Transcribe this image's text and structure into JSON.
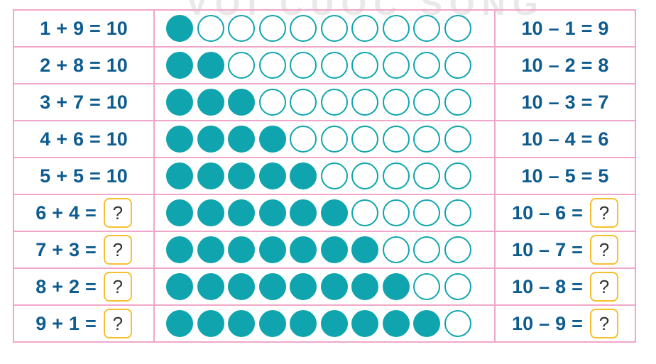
{
  "watermark": "VOI CUOC SONG",
  "colors": {
    "border": "#f0a6c8",
    "text": "#0e5c8f",
    "dot": "#10a5ae",
    "answer_box": "#f7bf2e"
  },
  "total_dots": 10,
  "rows": [
    {
      "left": {
        "a": "1",
        "op": "+",
        "b": "9",
        "eq": "=",
        "res": "10"
      },
      "filled": 1,
      "right": {
        "a": "10",
        "op": "–",
        "b": "1",
        "eq": "=",
        "res": "9"
      }
    },
    {
      "left": {
        "a": "2",
        "op": "+",
        "b": "8",
        "eq": "=",
        "res": "10"
      },
      "filled": 2,
      "right": {
        "a": "10",
        "op": "–",
        "b": "2",
        "eq": "=",
        "res": "8"
      }
    },
    {
      "left": {
        "a": "3",
        "op": "+",
        "b": "7",
        "eq": "=",
        "res": "10"
      },
      "filled": 3,
      "right": {
        "a": "10",
        "op": "–",
        "b": "3",
        "eq": "=",
        "res": "7"
      }
    },
    {
      "left": {
        "a": "4",
        "op": "+",
        "b": "6",
        "eq": "=",
        "res": "10"
      },
      "filled": 4,
      "right": {
        "a": "10",
        "op": "–",
        "b": "4",
        "eq": "=",
        "res": "6"
      }
    },
    {
      "left": {
        "a": "5",
        "op": "+",
        "b": "5",
        "eq": "=",
        "res": "10"
      },
      "filled": 5,
      "right": {
        "a": "10",
        "op": "–",
        "b": "5",
        "eq": "=",
        "res": "5"
      }
    },
    {
      "left": {
        "a": "6",
        "op": "+",
        "b": "4",
        "eq": "=",
        "res": "?",
        "blank": true
      },
      "filled": 6,
      "right": {
        "a": "10",
        "op": "–",
        "b": "6",
        "eq": "=",
        "res": "?",
        "blank": true
      }
    },
    {
      "left": {
        "a": "7",
        "op": "+",
        "b": "3",
        "eq": "=",
        "res": "?",
        "blank": true
      },
      "filled": 7,
      "right": {
        "a": "10",
        "op": "–",
        "b": "7",
        "eq": "=",
        "res": "?",
        "blank": true
      }
    },
    {
      "left": {
        "a": "8",
        "op": "+",
        "b": "2",
        "eq": "=",
        "res": "?",
        "blank": true
      },
      "filled": 8,
      "right": {
        "a": "10",
        "op": "–",
        "b": "8",
        "eq": "=",
        "res": "?",
        "blank": true
      }
    },
    {
      "left": {
        "a": "9",
        "op": "+",
        "b": "1",
        "eq": "=",
        "res": "?",
        "blank": true
      },
      "filled": 9,
      "right": {
        "a": "10",
        "op": "–",
        "b": "9",
        "eq": "=",
        "res": "?",
        "blank": true
      }
    }
  ]
}
